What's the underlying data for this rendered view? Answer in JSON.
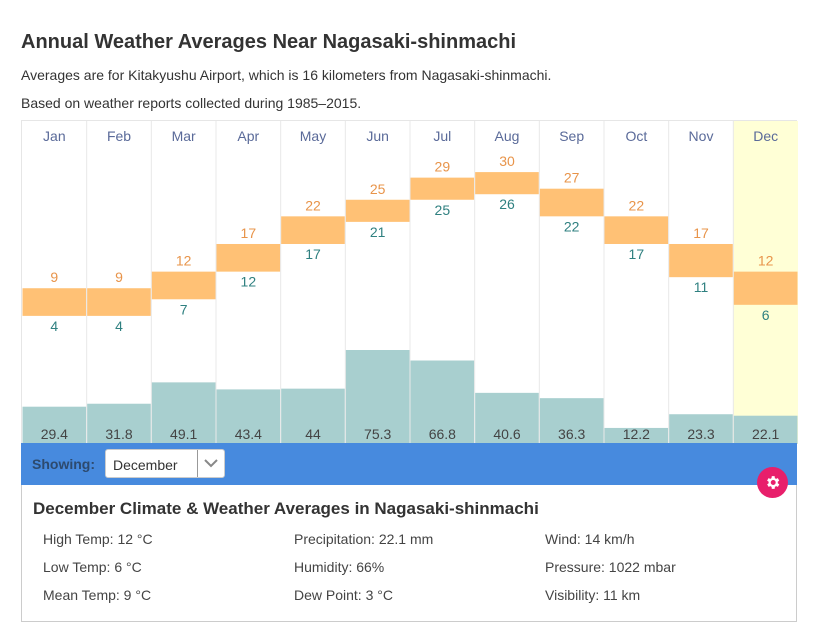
{
  "page": {
    "title": "Annual Weather Averages Near Nagasaki-shinmachi",
    "subtitle1": "Averages are for Kitakyushu Airport, which is 16 kilometers from Nagasaki-shinmachi.",
    "subtitle2": "Based on weather reports collected during 1985–2015."
  },
  "chart_data": {
    "type": "bar",
    "title": "Annual Weather Averages Near Nagasaki-shinmachi",
    "categories": [
      "Jan",
      "Feb",
      "Mar",
      "Apr",
      "May",
      "Jun",
      "Jul",
      "Aug",
      "Sep",
      "Oct",
      "Nov",
      "Dec"
    ],
    "series": [
      {
        "name": "High Temp (°C)",
        "values": [
          9,
          9,
          12,
          17,
          22,
          25,
          29,
          30,
          27,
          22,
          17,
          12
        ]
      },
      {
        "name": "Low Temp (°C)",
        "values": [
          4,
          4,
          7,
          12,
          17,
          21,
          25,
          26,
          22,
          17,
          11,
          6
        ]
      },
      {
        "name": "Precipitation (mm)",
        "values": [
          29.4,
          31.8,
          49.1,
          43.4,
          44,
          75.3,
          66.8,
          40.6,
          36.3,
          12.2,
          23.3,
          22.1
        ]
      }
    ],
    "selected_month": "Dec",
    "colors": {
      "temp_range": "#ffc175",
      "high_label": "#e8944a",
      "low_label": "#2f8080",
      "precip": "#a8cfcf",
      "month_label": "#5a6a99",
      "selected_bg": "#ffffd6"
    }
  },
  "controls": {
    "showing_label": "Showing:",
    "selected_option": "December",
    "gear_icon": "gear-icon",
    "bar_color": "#478ade",
    "gear_color": "#e81f6b"
  },
  "details": {
    "heading": "December Climate & Weather Averages in Nagasaki-shinmachi",
    "stats": [
      [
        "High Temp: 12 °C",
        "Precipitation: 22.1 mm",
        "Wind: 14 km/h"
      ],
      [
        "Low Temp: 6 °C",
        "Humidity: 66%",
        "Pressure: 1022 mbar"
      ],
      [
        "Mean Temp: 9 °C",
        "Dew Point: 3 °C",
        "Visibility: 11 km"
      ]
    ]
  }
}
